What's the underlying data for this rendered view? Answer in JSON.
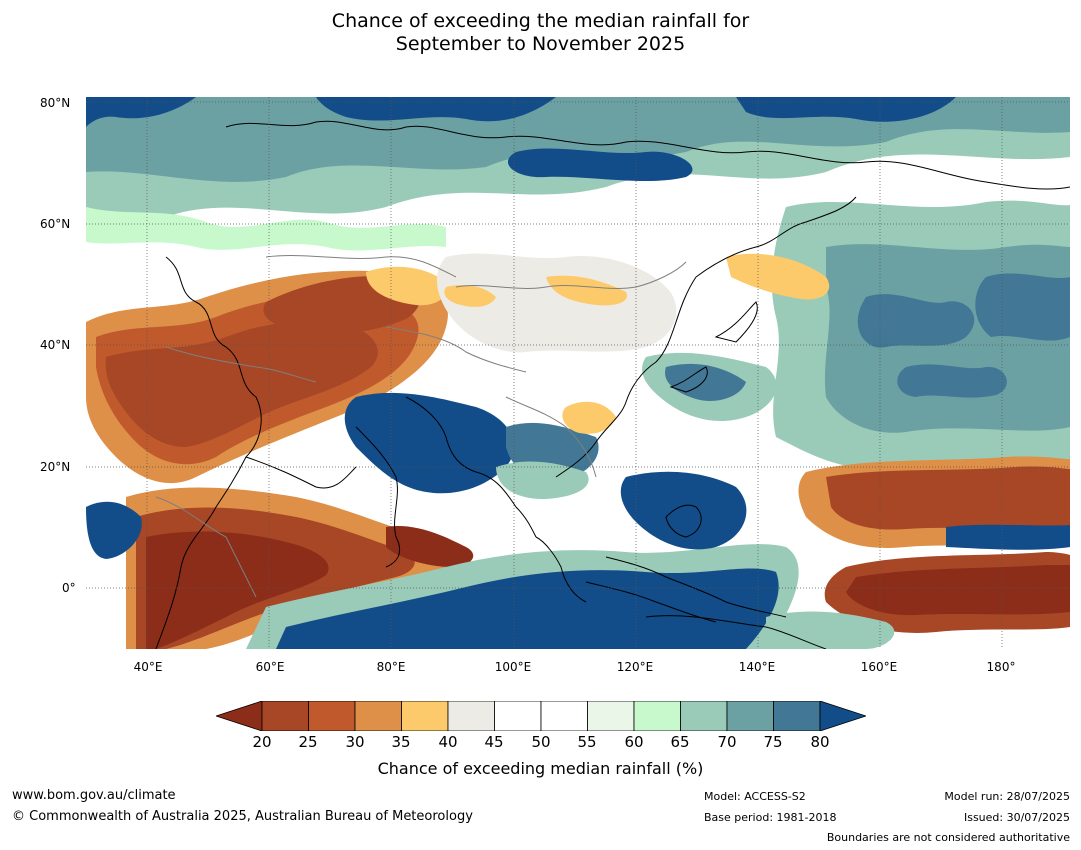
{
  "title_line1": "Chance of exceeding the median rainfall for",
  "title_line2": "September to November 2025",
  "map": {
    "lat_labels": [
      "80°N",
      "60°N",
      "40°N",
      "20°N",
      "0°"
    ],
    "lon_labels": [
      "40°E",
      "60°E",
      "80°E",
      "100°E",
      "120°E",
      "140°E",
      "160°E",
      "180°"
    ],
    "extent": {
      "lon": [
        30,
        191
      ],
      "lat": [
        -10,
        80
      ]
    }
  },
  "colorbar": {
    "title": "Chance of exceeding median rainfall (%)",
    "ticks": [
      "20",
      "25",
      "30",
      "35",
      "40",
      "45",
      "50",
      "55",
      "60",
      "65",
      "70",
      "75",
      "80"
    ],
    "colors": [
      "#8c2d1a",
      "#a84726",
      "#c05a2c",
      "#de9048",
      "#fdca6b",
      "#edebe6",
      "#ffffff",
      "#ffffff",
      "#e9f6e8",
      "#c7f9cd",
      "#9acbb8",
      "#6ca1a4",
      "#427895",
      "#124d8a"
    ],
    "under_color": "#8c2d1a",
    "over_color": "#124d8a"
  },
  "footer": {
    "url": "www.bom.gov.au/climate",
    "copyright": "© Commonwealth of Australia 2025, Australian Bureau of Meteorology",
    "model": "Model: ACCESS-S2",
    "base_period": "Base period: 1981-2018",
    "model_run": "Model run: 28/07/2025",
    "issued": "Issued: 30/07/2025",
    "disclaimer": "Boundaries are not considered authoritative"
  }
}
